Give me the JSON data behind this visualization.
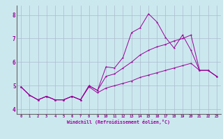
{
  "title": "",
  "xlabel": "Windchill (Refroidissement éolien,°C)",
  "ylabel": "",
  "bg_color": "#cce8ef",
  "line_color": "#990099",
  "grid_color": "#aabbcc",
  "xlim": [
    -0.5,
    23.5
  ],
  "ylim": [
    3.8,
    8.4
  ],
  "xticks": [
    0,
    1,
    2,
    3,
    4,
    5,
    6,
    7,
    8,
    9,
    10,
    11,
    12,
    13,
    14,
    15,
    16,
    17,
    18,
    19,
    20,
    21,
    22,
    23
  ],
  "yticks": [
    4,
    5,
    6,
    7,
    8
  ],
  "series": [
    {
      "x": [
        0,
        1,
        2,
        3,
        4,
        5,
        6,
        7,
        8,
        9,
        10,
        11,
        12,
        13,
        14,
        15,
        16,
        17,
        18,
        19,
        20,
        21,
        22,
        23
      ],
      "y": [
        4.95,
        4.6,
        4.4,
        4.55,
        4.4,
        4.4,
        4.55,
        4.4,
        5.0,
        4.8,
        5.8,
        5.75,
        6.2,
        7.25,
        7.45,
        8.05,
        7.7,
        7.05,
        6.6,
        7.15,
        6.5,
        5.65,
        5.65,
        5.4
      ]
    },
    {
      "x": [
        0,
        1,
        2,
        3,
        4,
        5,
        6,
        7,
        8,
        9,
        10,
        11,
        12,
        13,
        14,
        15,
        16,
        17,
        18,
        19,
        20,
        21,
        22,
        23
      ],
      "y": [
        4.95,
        4.6,
        4.4,
        4.55,
        4.4,
        4.4,
        4.55,
        4.4,
        5.0,
        4.8,
        5.4,
        5.5,
        5.75,
        6.0,
        6.3,
        6.5,
        6.65,
        6.75,
        6.9,
        7.0,
        7.15,
        5.65,
        5.65,
        5.4
      ]
    },
    {
      "x": [
        0,
        1,
        2,
        3,
        4,
        5,
        6,
        7,
        8,
        9,
        10,
        11,
        12,
        13,
        14,
        15,
        16,
        17,
        18,
        19,
        20,
        21,
        22,
        23
      ],
      "y": [
        4.95,
        4.6,
        4.4,
        4.55,
        4.4,
        4.4,
        4.55,
        4.4,
        4.95,
        4.7,
        4.9,
        5.0,
        5.1,
        5.2,
        5.35,
        5.45,
        5.55,
        5.65,
        5.75,
        5.85,
        5.95,
        5.65,
        5.65,
        5.4
      ]
    }
  ]
}
